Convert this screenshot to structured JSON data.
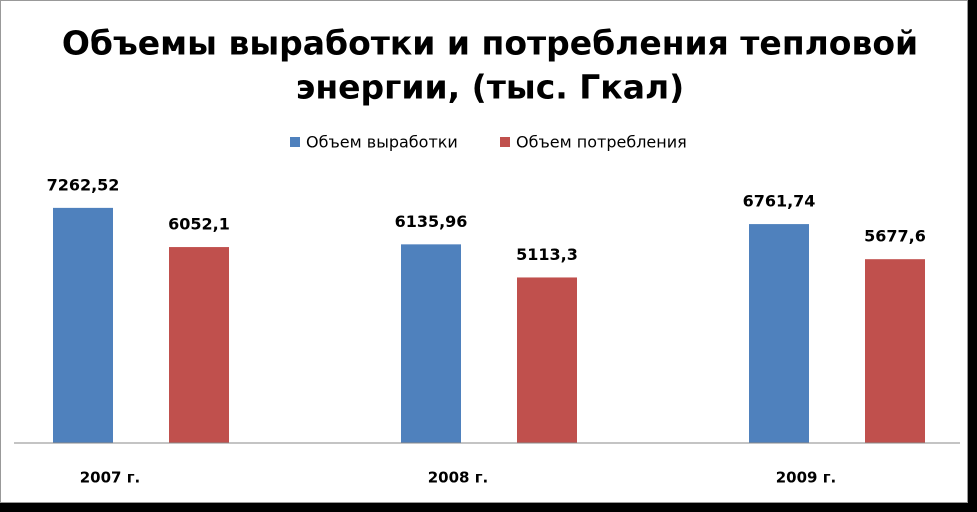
{
  "chart_data": {
    "type": "bar",
    "title": [
      "Объемы выработки и потребления тепловой",
      "энергии, (тыс. Гкал)"
    ],
    "categories": [
      "2007 г.",
      "2008 г.",
      "2009 г."
    ],
    "series": [
      {
        "name": "Объем выработки",
        "color": "#4f81bd",
        "values": [
          7262.52,
          6135.96,
          6761.74
        ],
        "value_labels": [
          "7262,52",
          "6135,96",
          "6761,74"
        ]
      },
      {
        "name": "Объем потребления",
        "color": "#c0504d",
        "values": [
          6052.1,
          5113.3,
          5677.6
        ],
        "value_labels": [
          "6052,1",
          "5113,3",
          "5677,6"
        ]
      }
    ],
    "ylim": [
      0,
      8000
    ],
    "legend": "top"
  }
}
